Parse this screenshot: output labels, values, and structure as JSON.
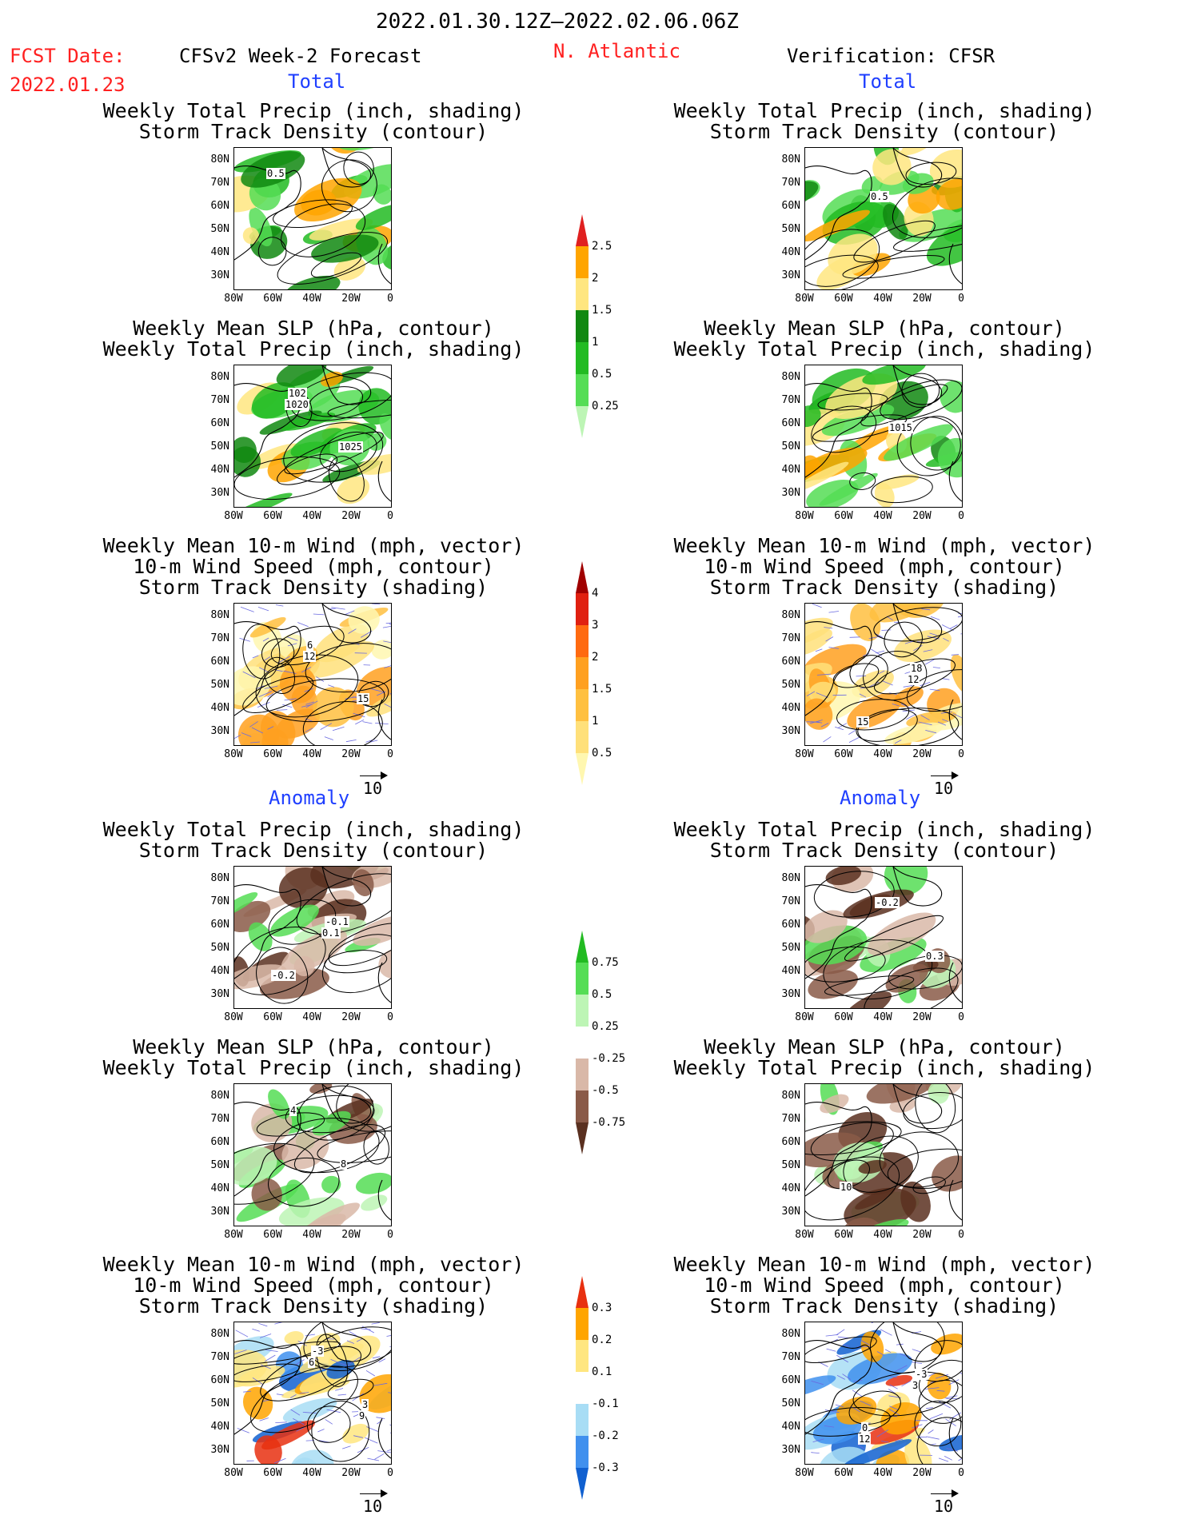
{
  "header": {
    "period": "2022.01.30.12Z–2022.02.06.06Z",
    "fcst_label": "FCST Date:",
    "fcst_date": "2022.01.23",
    "left_title": "CFSv2 Week-2 Forecast",
    "region": "N. Atlantic",
    "right_title": "Verification: CFSR"
  },
  "sections": {
    "total": "Total",
    "anomaly": "Anomaly"
  },
  "panel_titles": {
    "precip_track": [
      "Weekly Total Precip (inch, shading)",
      "Storm Track Density (contour)"
    ],
    "slp_precip": [
      "Weekly Mean SLP (hPa, contour)",
      "Weekly Total Precip (inch, shading)"
    ],
    "wind_track": [
      "Weekly Mean 10-m Wind (mph, vector)",
      "10-m Wind Speed (mph, contour)",
      "Storm Track Density (shading)"
    ]
  },
  "axes": {
    "lat_labels": [
      "80N",
      "70N",
      "60N",
      "50N",
      "40N",
      "30N"
    ],
    "lon_labels": [
      "80W",
      "60W",
      "40W",
      "20W",
      "0"
    ]
  },
  "vector_ref": "10",
  "contour_labels": {
    "fc_total_precip": [
      "0.5"
    ],
    "vf_total_precip": [
      "0.5"
    ],
    "fc_total_slp": [
      "1020",
      "1025",
      "102"
    ],
    "vf_total_slp": [
      "1015"
    ],
    "fc_total_wind": [
      "12",
      "15",
      "6"
    ],
    "vf_total_wind": [
      "12",
      "15",
      "18"
    ],
    "fc_anom_precip": [
      "0.1",
      "-0.2",
      "-0.1"
    ],
    "vf_anom_precip": [
      "0.3",
      "-0.2"
    ],
    "fc_anom_slp": [
      "8",
      "4"
    ],
    "vf_anom_slp": [
      "10"
    ],
    "fc_anom_wind": [
      "9",
      "6",
      "3",
      "-3"
    ],
    "vf_anom_wind": [
      "12",
      "3",
      "0",
      "-3"
    ]
  },
  "colorbars": {
    "precip_total": {
      "labels": [
        "0.25",
        "0.5",
        "1",
        "1.5",
        "2",
        "2.5"
      ],
      "colors": [
        "#bdf5b5",
        "#55dd55",
        "#22bb22",
        "#118811",
        "#ffe680",
        "#ffa500",
        "#e02020"
      ]
    },
    "track_total": {
      "labels": [
        "0.5",
        "1",
        "1.5",
        "2",
        "3",
        "4"
      ],
      "colors": [
        "#fff7b0",
        "#ffe07a",
        "#ffc040",
        "#ffa020",
        "#ff6a10",
        "#e02010",
        "#a00000"
      ]
    },
    "precip_anom": {
      "labels": [
        "-0.75",
        "-0.5",
        "-0.25",
        "0.25",
        "0.5",
        "0.75"
      ],
      "colors": [
        "#5a3020",
        "#8a5a48",
        "#d9b8a8",
        "#ffffff",
        "#bdf5b5",
        "#55dd55",
        "#22bb22"
      ]
    },
    "track_anom": {
      "labels": [
        "-0.3",
        "-0.2",
        "-0.1",
        "0.1",
        "0.2",
        "0.3"
      ],
      "colors": [
        "#1060d0",
        "#4090ee",
        "#a8ddf5",
        "#ffffff",
        "#ffe680",
        "#ffa500",
        "#e83010"
      ]
    }
  }
}
